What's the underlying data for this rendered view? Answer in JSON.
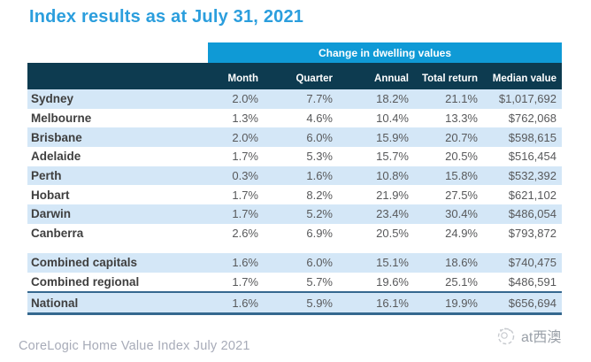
{
  "title": "Index results as at July 31, 2021",
  "table": {
    "band_label": "Change in dwelling values",
    "columns": {
      "month": "Month",
      "quarter": "Quarter",
      "annual": "Annual",
      "total_return": "Total return",
      "median": "Median value"
    },
    "rows": [
      {
        "name": "Sydney",
        "month": "2.0%",
        "quarter": "7.7%",
        "annual": "18.2%",
        "total_return": "21.1%",
        "median": "$1,017,692"
      },
      {
        "name": "Melbourne",
        "month": "1.3%",
        "quarter": "4.6%",
        "annual": "10.4%",
        "total_return": "13.3%",
        "median": "$762,068"
      },
      {
        "name": "Brisbane",
        "month": "2.0%",
        "quarter": "6.0%",
        "annual": "15.9%",
        "total_return": "20.7%",
        "median": "$598,615"
      },
      {
        "name": "Adelaide",
        "month": "1.7%",
        "quarter": "5.3%",
        "annual": "15.7%",
        "total_return": "20.5%",
        "median": "$516,454"
      },
      {
        "name": "Perth",
        "month": "0.3%",
        "quarter": "1.6%",
        "annual": "10.8%",
        "total_return": "15.8%",
        "median": "$532,392"
      },
      {
        "name": "Hobart",
        "month": "1.7%",
        "quarter": "8.2%",
        "annual": "21.9%",
        "total_return": "27.5%",
        "median": "$621,102"
      },
      {
        "name": "Darwin",
        "month": "1.7%",
        "quarter": "5.2%",
        "annual": "23.4%",
        "total_return": "30.4%",
        "median": "$486,054"
      },
      {
        "name": "Canberra",
        "month": "2.6%",
        "quarter": "6.9%",
        "annual": "20.5%",
        "total_return": "24.9%",
        "median": "$793,872"
      },
      {
        "name": "Combined capitals",
        "month": "1.6%",
        "quarter": "6.0%",
        "annual": "15.1%",
        "total_return": "18.6%",
        "median": "$740,475"
      },
      {
        "name": "Combined regional",
        "month": "1.7%",
        "quarter": "5.7%",
        "annual": "19.6%",
        "total_return": "25.1%",
        "median": "$486,591"
      },
      {
        "name": "National",
        "month": "1.6%",
        "quarter": "5.9%",
        "annual": "16.1%",
        "total_return": "19.9%",
        "median": "$656,694"
      }
    ]
  },
  "footer": {
    "source": "CoreLogic Home Value Index July 2021"
  },
  "watermark": {
    "label": "at西澳"
  },
  "colors": {
    "title_blue": "#2b9edd",
    "band_blue": "#0f9ad6",
    "header_dark": "#0d3b50",
    "stripe_blue": "#d4e7f7",
    "national_border": "#35688f"
  },
  "chart_data": {
    "type": "table",
    "title": "Index results as at July 31, 2021",
    "group_header": "Change in dwelling values",
    "columns": [
      "Month",
      "Quarter",
      "Annual",
      "Total return",
      "Median value"
    ],
    "categories": [
      "Sydney",
      "Melbourne",
      "Brisbane",
      "Adelaide",
      "Perth",
      "Hobart",
      "Darwin",
      "Canberra",
      "Combined capitals",
      "Combined regional",
      "National"
    ],
    "series": [
      {
        "name": "Month (%)",
        "values": [
          2.0,
          1.3,
          2.0,
          1.7,
          0.3,
          1.7,
          1.7,
          2.6,
          1.6,
          1.7,
          1.6
        ]
      },
      {
        "name": "Quarter (%)",
        "values": [
          7.7,
          4.6,
          6.0,
          5.3,
          1.6,
          8.2,
          5.2,
          6.9,
          6.0,
          5.7,
          5.9
        ]
      },
      {
        "name": "Annual (%)",
        "values": [
          18.2,
          10.4,
          15.9,
          15.7,
          10.8,
          21.9,
          23.4,
          20.5,
          15.1,
          19.6,
          16.1
        ]
      },
      {
        "name": "Total return (%)",
        "values": [
          21.1,
          13.3,
          20.7,
          20.5,
          15.8,
          27.5,
          30.4,
          24.9,
          18.6,
          25.1,
          19.9
        ]
      },
      {
        "name": "Median value ($)",
        "values": [
          1017692,
          762068,
          598615,
          516454,
          532392,
          621102,
          486054,
          793872,
          740475,
          486591,
          656694
        ]
      }
    ],
    "source": "CoreLogic Home Value Index July 2021"
  }
}
